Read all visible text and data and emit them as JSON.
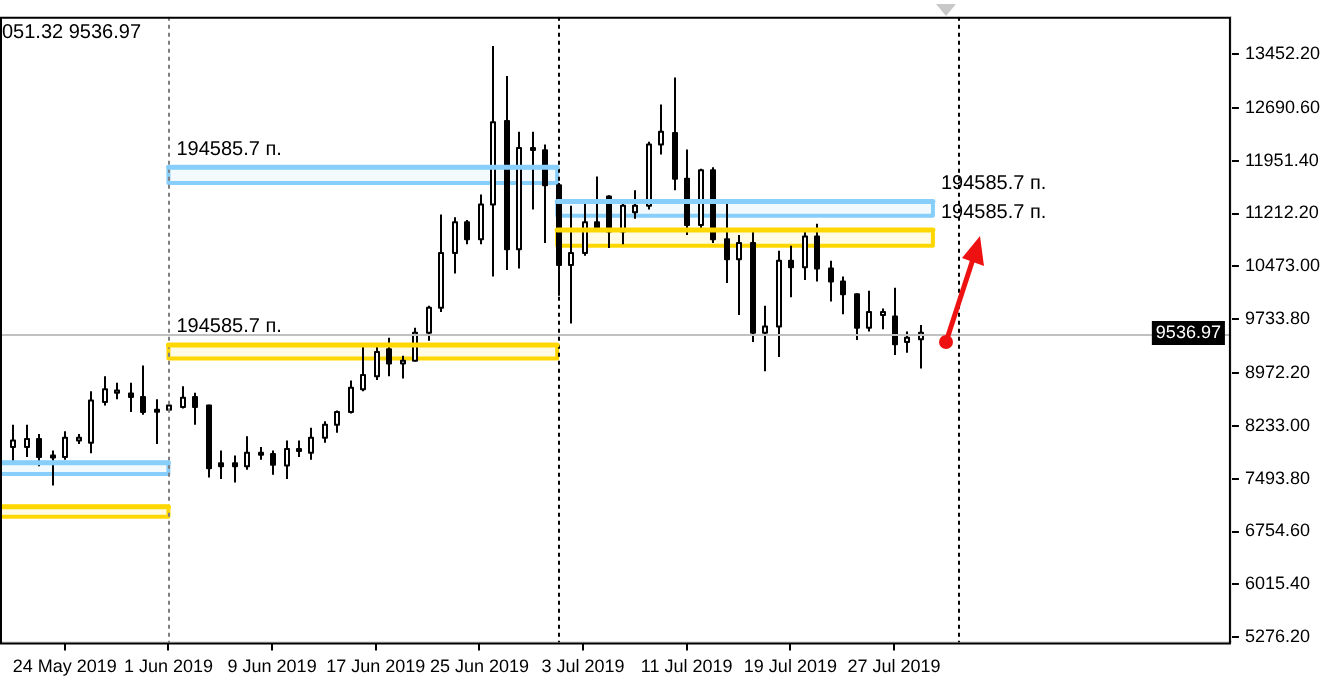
{
  "chart_data": {
    "type": "candlestick",
    "color": "#000000",
    "x": [
      "2019-05-20",
      "2019-05-21",
      "2019-05-22",
      "2019-05-23",
      "2019-05-24",
      "2019-05-25",
      "2019-05-26",
      "2019-05-27",
      "2019-05-28",
      "2019-05-29",
      "2019-05-30",
      "2019-05-31",
      "2019-06-01",
      "2019-06-02",
      "2019-06-03",
      "2019-06-04",
      "2019-06-05",
      "2019-06-06",
      "2019-06-07",
      "2019-06-08",
      "2019-06-09",
      "2019-06-10",
      "2019-06-11",
      "2019-06-12",
      "2019-06-13",
      "2019-06-14",
      "2019-06-15",
      "2019-06-16",
      "2019-06-17",
      "2019-06-18",
      "2019-06-19",
      "2019-06-20",
      "2019-06-21",
      "2019-06-22",
      "2019-06-23",
      "2019-06-24",
      "2019-06-25",
      "2019-06-26",
      "2019-06-27",
      "2019-06-28",
      "2019-06-29",
      "2019-06-30",
      "2019-07-01",
      "2019-07-02",
      "2019-07-03",
      "2019-07-04",
      "2019-07-05",
      "2019-07-06",
      "2019-07-07",
      "2019-07-08",
      "2019-07-09",
      "2019-07-10",
      "2019-07-11",
      "2019-07-12",
      "2019-07-13",
      "2019-07-14",
      "2019-07-15",
      "2019-07-16",
      "2019-07-17",
      "2019-07-18",
      "2019-07-19",
      "2019-07-20",
      "2019-07-21",
      "2019-07-22",
      "2019-07-23",
      "2019-07-24",
      "2019-07-25",
      "2019-07-26",
      "2019-07-27",
      "2019-07-28",
      "2019-07-29"
    ],
    "ohlc": [
      [
        7940,
        8250,
        7710,
        8030
      ],
      [
        7940,
        8250,
        7800,
        8050
      ],
      [
        8050,
        8120,
        7670,
        7800
      ],
      [
        7820,
        7890,
        7400,
        7800
      ],
      [
        7800,
        8160,
        7760,
        8070
      ],
      [
        8030,
        8120,
        7980,
        8070
      ],
      [
        8000,
        8720,
        7850,
        8590
      ],
      [
        8570,
        8930,
        8520,
        8750
      ],
      [
        8700,
        8840,
        8610,
        8730
      ],
      [
        8690,
        8840,
        8430,
        8640
      ],
      [
        8640,
        9080,
        8390,
        8430
      ],
      [
        8460,
        8610,
        7980,
        8450
      ],
      [
        8460,
        8570,
        8430,
        8520
      ],
      [
        8500,
        8790,
        8480,
        8630
      ],
      [
        8640,
        8700,
        8250,
        8500
      ],
      [
        8520,
        8530,
        7510,
        7640
      ],
      [
        7710,
        7890,
        7490,
        7670
      ],
      [
        7710,
        7820,
        7440,
        7670
      ],
      [
        7670,
        8090,
        7620,
        7860
      ],
      [
        7840,
        7940,
        7760,
        7860
      ],
      [
        7840,
        7890,
        7550,
        7690
      ],
      [
        7680,
        8030,
        7490,
        7910
      ],
      [
        7890,
        8030,
        7800,
        7910
      ],
      [
        7860,
        8210,
        7760,
        8070
      ],
      [
        8070,
        8300,
        8000,
        8250
      ],
      [
        8250,
        8450,
        8140,
        8430
      ],
      [
        8430,
        8870,
        8410,
        8770
      ],
      [
        8750,
        9350,
        8720,
        8950
      ],
      [
        8930,
        9350,
        8880,
        9270
      ],
      [
        9310,
        9470,
        8930,
        9110
      ],
      [
        9110,
        9220,
        8900,
        9150
      ],
      [
        9150,
        9610,
        9140,
        9540
      ],
      [
        9540,
        9920,
        9430,
        9890
      ],
      [
        9890,
        11200,
        9830,
        10660
      ],
      [
        10660,
        11160,
        10370,
        11090
      ],
      [
        11090,
        11120,
        10780,
        10850
      ],
      [
        10850,
        11480,
        10780,
        11340
      ],
      [
        11340,
        13560,
        10330,
        12490
      ],
      [
        12510,
        13140,
        10420,
        10710
      ],
      [
        10710,
        12360,
        10440,
        12130
      ],
      [
        12110,
        12360,
        11270,
        12130
      ],
      [
        12100,
        12180,
        10800,
        11610
      ],
      [
        11610,
        11640,
        10060,
        10490
      ],
      [
        10490,
        11320,
        9670,
        10660
      ],
      [
        10660,
        11410,
        10620,
        11090
      ],
      [
        11090,
        11730,
        10960,
        11000
      ],
      [
        11450,
        11470,
        10730,
        10960
      ],
      [
        10960,
        11410,
        10780,
        11320
      ],
      [
        11230,
        11540,
        11140,
        11320
      ],
      [
        11320,
        12220,
        11270,
        12180
      ],
      [
        12180,
        12740,
        12040,
        12360
      ],
      [
        12340,
        13120,
        11540,
        11700
      ],
      [
        11700,
        12110,
        10910,
        11050
      ],
      [
        11050,
        11840,
        11000,
        11820
      ],
      [
        11820,
        11860,
        10800,
        10850
      ],
      [
        10850,
        11410,
        10240,
        10570
      ],
      [
        10570,
        10910,
        9790,
        10800
      ],
      [
        10800,
        11000,
        9410,
        9540
      ],
      [
        9540,
        9920,
        9000,
        9630
      ],
      [
        9630,
        10690,
        9200,
        10550
      ],
      [
        10550,
        10760,
        10040,
        10460
      ],
      [
        10460,
        10960,
        10280,
        10890
      ],
      [
        10890,
        11070,
        10260,
        10440
      ],
      [
        10440,
        10550,
        9980,
        10260
      ],
      [
        10260,
        10330,
        9800,
        10080
      ],
      [
        10080,
        10090,
        9440,
        9610
      ],
      [
        9610,
        10130,
        9560,
        9830
      ],
      [
        9790,
        9880,
        9590,
        9830
      ],
      [
        9770,
        10170,
        9230,
        9380
      ],
      [
        9410,
        9560,
        9260,
        9470
      ],
      [
        9450,
        9650,
        9040,
        9540
      ]
    ],
    "series": [
      {
        "type": "line",
        "color": "#87cefa",
        "x": [
          "2019-06-01",
          "2019-07-01"
        ],
        "values": [
          11860,
          11860
        ],
        "lower": [
          11640,
          11640
        ],
        "upper": [
          11860,
          11860
        ]
      },
      {
        "type": "line",
        "color": "#ffd700",
        "x": [
          "2019-06-01",
          "2019-07-01"
        ],
        "values": [
          9370,
          9370
        ],
        "lower": [
          9180,
          9180
        ],
        "upper": [
          9370,
          9370
        ]
      },
      {
        "type": "line",
        "color": "#87cefa",
        "x": [
          "2019-05-19",
          "2019-06-01"
        ],
        "values": [
          7720,
          7720
        ],
        "lower": [
          7560,
          7560
        ],
        "upper": [
          7720,
          7720
        ]
      },
      {
        "type": "line",
        "color": "#ffd700",
        "x": [
          "2019-05-19",
          "2019-06-01"
        ],
        "values": [
          7100,
          7100
        ],
        "lower": [
          6960,
          6960
        ],
        "upper": [
          7100,
          7100
        ]
      },
      {
        "type": "line",
        "color": "#87cefa",
        "x": [
          "2019-07-01",
          "2019-07-30"
        ],
        "values": [
          11380,
          11380
        ],
        "lower": [
          11180,
          11180
        ],
        "upper": [
          11380,
          11380
        ]
      },
      {
        "type": "line",
        "color": "#ffd700",
        "x": [
          "2019-07-01",
          "2019-07-30"
        ],
        "values": [
          10980,
          10980
        ],
        "lower": [
          10760,
          10760
        ],
        "upper": [
          10980,
          10980
        ]
      }
    ],
    "annotations": [
      "051.32 9536.97",
      {
        "text": "194585.7 п.",
        "x": "2019-06-01",
        "y": 11860
      },
      {
        "text": "194585.7 п.",
        "x": "2019-06-01",
        "y": 9370
      },
      {
        "text": "194585.7 п.",
        "x": "2019-07-30",
        "y": 11380
      },
      {
        "text": "194585.7 п.",
        "x": "2019-07-30",
        "y": 10980
      }
    ],
    "ref_lines": [
      {
        "axis": "y",
        "value": 9536.97,
        "label": "9536.97",
        "color": "#c0c0c0"
      },
      {
        "axis": "x",
        "value": "2019-06-01",
        "color": "#808080",
        "line_style": "dotted"
      },
      {
        "axis": "x",
        "value": "2019-07-01",
        "color": "#000000",
        "line_style": "dotted"
      },
      {
        "axis": "x",
        "value": "2019-08-01",
        "color": "#000000",
        "line_style": "dotted"
      }
    ],
    "xlim": [
      "2019-05-19",
      "2019-08-22"
    ],
    "xticks": [
      {
        "value": "2019-05-24",
        "label": "24 May 2019"
      },
      {
        "value": "2019-06-01",
        "label": "1 Jun 2019"
      },
      {
        "value": "2019-06-09",
        "label": "9 Jun 2019"
      },
      {
        "value": "2019-06-17",
        "label": "17 Jun 2019"
      },
      {
        "value": "2019-06-25",
        "label": "25 Jun 2019"
      },
      {
        "value": "2019-07-03",
        "label": "3 Jul 2019"
      },
      {
        "value": "2019-07-11",
        "label": "11 Jul 2019"
      },
      {
        "value": "2019-07-19",
        "label": "19 Jul 2019"
      },
      {
        "value": "2019-07-27",
        "label": "27 Jul 2019"
      }
    ],
    "ylim": [
      5200,
      13970
    ],
    "yticks": [
      {
        "value": 5276.2,
        "label": "5276.20"
      },
      {
        "value": 6015.4,
        "label": "6015.40"
      },
      {
        "value": 6754.6,
        "label": "6754.60"
      },
      {
        "value": 7493.8,
        "label": "7493.80"
      },
      {
        "value": 8233,
        "label": "8233.00"
      },
      {
        "value": 8972.2,
        "label": "8972.20"
      },
      {
        "value": 9733.8,
        "label": "9733.80"
      },
      {
        "value": 10473,
        "label": "10473.00"
      },
      {
        "value": 11212.2,
        "label": "11212.20"
      },
      {
        "value": 11951.4,
        "label": "11951.40"
      },
      {
        "value": 12690.6,
        "label": "12690.60"
      },
      {
        "value": 13452.2,
        "label": "13452.20"
      }
    ],
    "grid": false,
    "legend": false
  }
}
